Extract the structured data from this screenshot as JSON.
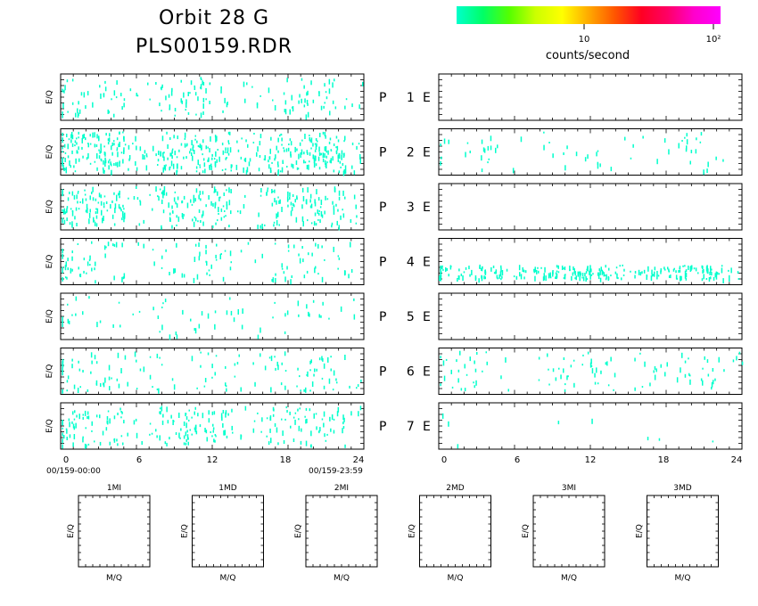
{
  "title": {
    "line1": "Orbit 28 G",
    "line2": "PLS00159.RDR"
  },
  "colorbar": {
    "label": "counts/second",
    "tick_labels": [
      "10",
      "10²"
    ],
    "colors": [
      "#00ffcc",
      "#00ff66",
      "#55ff00",
      "#ccff00",
      "#ffff00",
      "#ffaa00",
      "#ff5500",
      "#ff0022",
      "#ff0066",
      "#ff00cc",
      "#ff00ff"
    ]
  },
  "colors": {
    "data": "#00ffcc",
    "frame": "#000000",
    "background": "#ffffff"
  },
  "chart_data": {
    "type": "heatmap",
    "ylabel": "E/Q",
    "x_ticks": [
      "0",
      "6",
      "12",
      "18",
      "24"
    ],
    "xlim": [
      0,
      24
    ],
    "time_start": "00/159-00:00",
    "time_end": "00/159-23:59",
    "rows": [
      {
        "label": "P 1",
        "side": "E",
        "left_density": 0.35,
        "right_density": 0.0
      },
      {
        "label": "P 2",
        "side": "E",
        "left_density": 1.0,
        "right_density": 0.15
      },
      {
        "label": "P 3",
        "side": "E",
        "left_density": 0.7,
        "right_density": 0.0
      },
      {
        "label": "P 4",
        "side": "E",
        "left_density": 0.3,
        "right_density": 0.6
      },
      {
        "label": "P 5",
        "side": "E",
        "left_density": 0.15,
        "right_density": 0.0
      },
      {
        "label": "P 6",
        "side": "E",
        "left_density": 0.3,
        "right_density": 0.25
      },
      {
        "label": "P 7",
        "side": "E",
        "left_density": 0.55,
        "right_density": 0.02
      }
    ],
    "mass_panels": {
      "titles": [
        "1MI",
        "1MD",
        "2MI",
        "2MD",
        "3MI",
        "3MD"
      ],
      "xlabel": "M/Q",
      "ylabel": "E/Q"
    }
  }
}
